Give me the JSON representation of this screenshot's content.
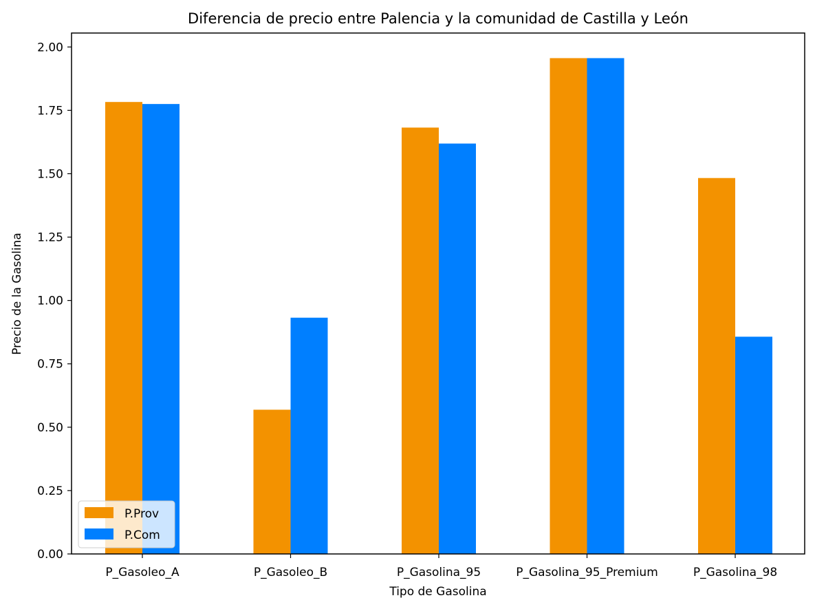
{
  "chart_data": {
    "type": "bar",
    "title": "Diferencia de precio entre Palencia y la comunidad de Castilla y León",
    "xlabel": "Tipo de Gasolina",
    "ylabel": "Precio de la Gasolina",
    "categories": [
      "P_Gasoleo_A",
      "P_Gasoleo_B",
      "P_Gasolina_95",
      "P_Gasolina_95_Premium",
      "P_Gasolina_98"
    ],
    "series": [
      {
        "name": "P.Prov",
        "color": "#f39200",
        "values": [
          1.783,
          0.569,
          1.682,
          1.956,
          1.483
        ]
      },
      {
        "name": "P.Com",
        "color": "#007fff",
        "values": [
          1.775,
          0.932,
          1.619,
          1.956,
          0.857
        ]
      }
    ],
    "ylim": [
      0,
      2.055
    ],
    "yticks": [
      "0.00",
      "0.25",
      "0.50",
      "0.75",
      "1.00",
      "1.25",
      "1.50",
      "1.75",
      "2.00"
    ],
    "grid": false,
    "legend_position": "lower-left"
  }
}
